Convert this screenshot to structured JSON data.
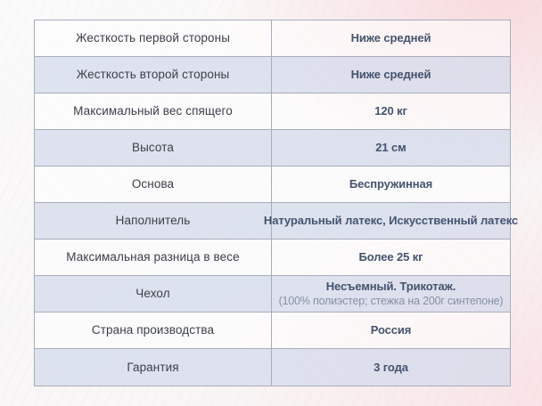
{
  "spec_table": {
    "rows": [
      {
        "label": "Жесткость первой стороны",
        "value": "Ниже средней"
      },
      {
        "label": "Жесткость второй стороны",
        "value": "Ниже средней"
      },
      {
        "label": "Максимальный вес спящего",
        "value": "120 кг"
      },
      {
        "label": "Высота",
        "value": "21 см"
      },
      {
        "label": "Основа",
        "value": "Беспружинная"
      },
      {
        "label": "Наполнитель",
        "value": "Натуральный латекс, Искусственный латекс"
      },
      {
        "label": "Максимальная разница в весе",
        "value": "Более 25 кг"
      },
      {
        "label": "Чехол",
        "value": "Несъемный. Трикотаж.",
        "note": "(100% полиэстер; стежка на 200г синтепоне)"
      },
      {
        "label": "Страна производства",
        "value": "Россия"
      },
      {
        "label": "Гарантия",
        "value": "3 года"
      }
    ],
    "colors": {
      "label_text": "#3b4049",
      "value_text": "#44536e",
      "note_text": "#8591a4",
      "border": "#a7aeba",
      "row_even_bg": "#dde3ee",
      "row_odd_bg": "#fdfcfc",
      "background_accent": "#f9e4e7"
    }
  }
}
